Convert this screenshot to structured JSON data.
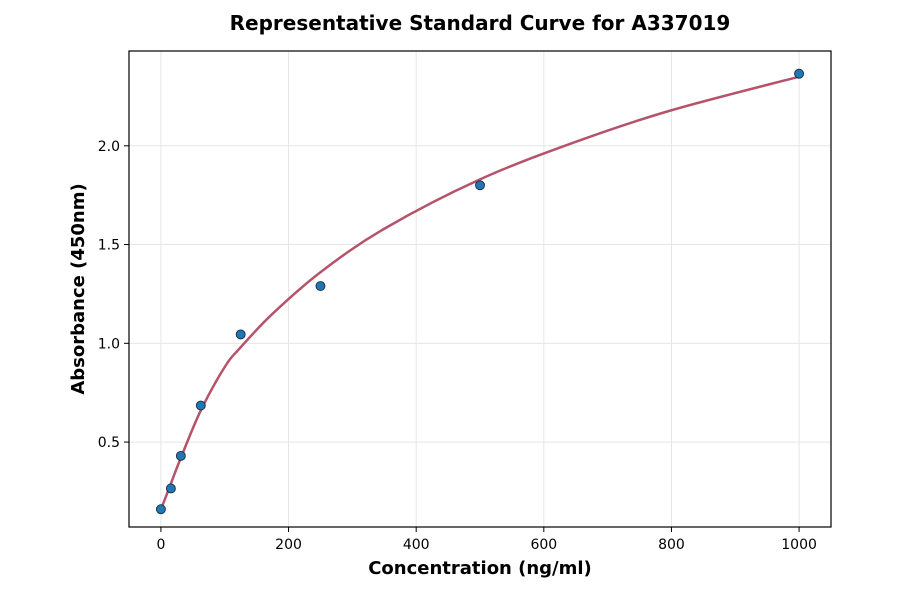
{
  "chart_data": {
    "type": "scatter",
    "title": "Representative Standard Curve for A337019",
    "xlabel": "Concentration (ng/ml)",
    "ylabel": "Absorbance (450nm)",
    "xlim": [
      -50,
      1050
    ],
    "ylim": [
      0.07,
      2.48
    ],
    "xticks": [
      0,
      200,
      400,
      600,
      800,
      1000
    ],
    "yticks": [
      0.5,
      1.0,
      1.5,
      2.0
    ],
    "xtick_labels": [
      "0",
      "200",
      "400",
      "600",
      "800",
      "1000"
    ],
    "ytick_labels": [
      "0.5",
      "1.0",
      "1.5",
      "2.0"
    ],
    "grid": true,
    "legend": "none",
    "series": [
      {
        "kind": "points",
        "color": "#1f77b4",
        "x": [
          0,
          15.625,
          31.25,
          62.5,
          125,
          250,
          500,
          1000
        ],
        "y": [
          0.16,
          0.265,
          0.43,
          0.685,
          1.045,
          1.29,
          1.8,
          2.365
        ]
      },
      {
        "kind": "fit-curve",
        "color": "#b5536a",
        "x": [
          0,
          5,
          15.625,
          31.25,
          62.5,
          100,
          125,
          175,
          250,
          350,
          500,
          650,
          800,
          1000
        ],
        "y": [
          0.16,
          0.2,
          0.29,
          0.42,
          0.66,
          0.88,
          0.98,
          1.15,
          1.36,
          1.58,
          1.83,
          2.02,
          2.18,
          2.35
        ]
      }
    ]
  }
}
